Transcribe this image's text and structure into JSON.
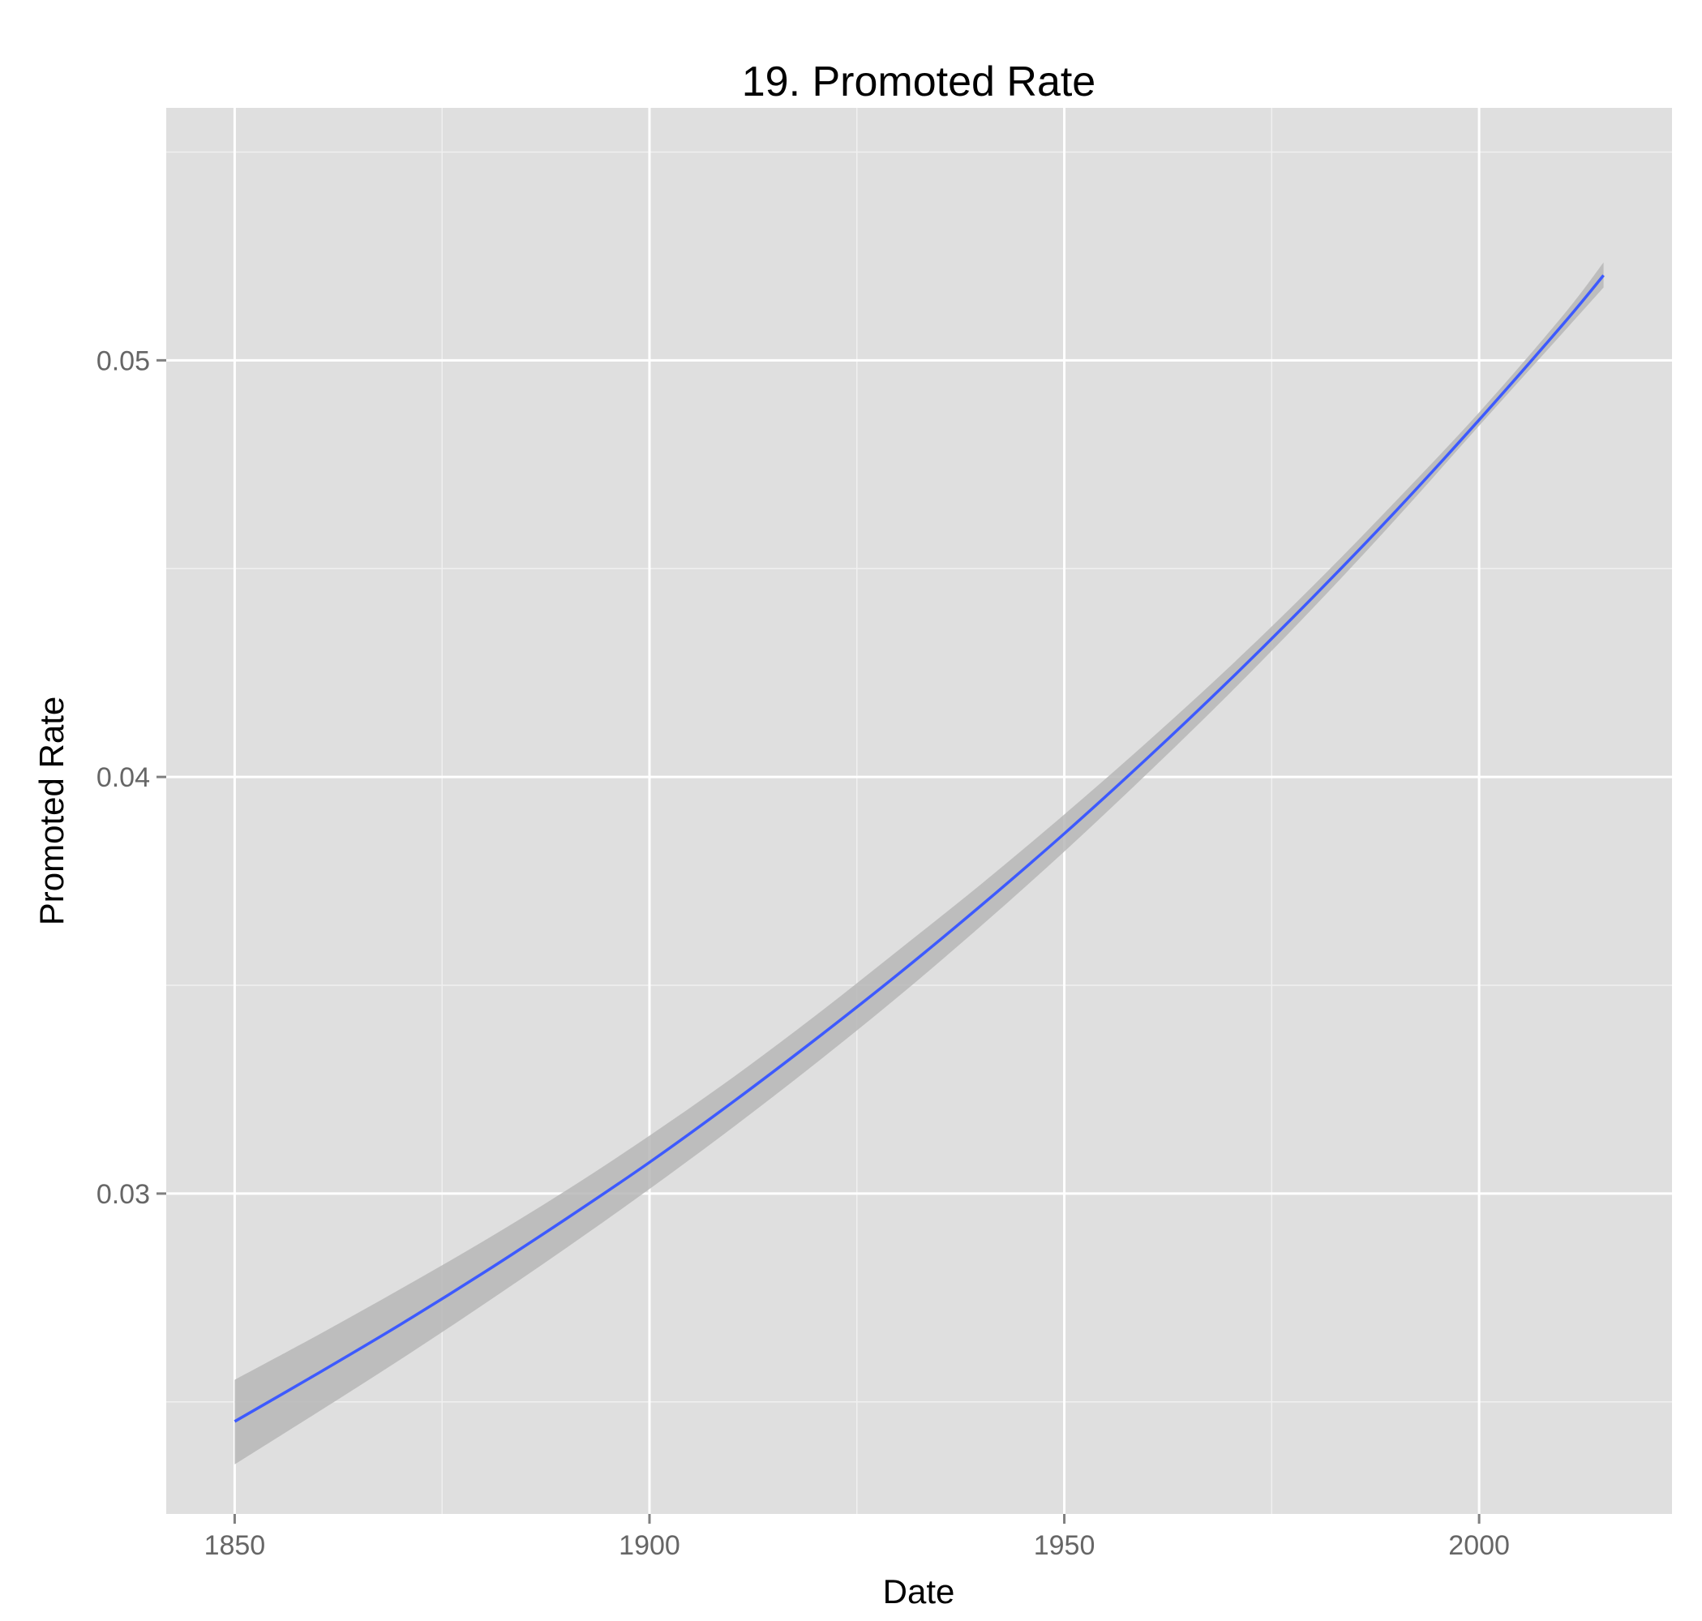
{
  "chart_data": {
    "type": "line",
    "title": "19. Promoted Rate",
    "xlabel": "Date",
    "ylabel": "Promoted Rate",
    "x_ticks": [
      1850,
      1900,
      1950,
      2000
    ],
    "y_ticks": [
      0.03,
      0.04,
      0.05
    ],
    "x_tick_labels": [
      "1850",
      "1900",
      "1950",
      "2000"
    ],
    "y_tick_labels": [
      "0.03",
      "0.04",
      "0.05"
    ],
    "xlim": [
      1841.75,
      2023.25
    ],
    "ylim": [
      0.02231,
      0.05606
    ],
    "grid": true,
    "legend": "none",
    "colors": {
      "panel": "#dfdfdf",
      "grid_major": "#ffffff",
      "grid_minor": "#f0f0f0",
      "line": "#3d5afe",
      "ribbon": "#b7b7b7"
    },
    "series": [
      {
        "x": [
          1850,
          1860,
          1870,
          1880,
          1890,
          1900,
          1910,
          1920,
          1930,
          1940,
          1950,
          1960,
          1970,
          1980,
          1990,
          2000,
          2010,
          2015
        ],
        "values": [
          0.02453,
          0.02568,
          0.02686,
          0.0281,
          0.0294,
          0.03075,
          0.03219,
          0.0337,
          0.03527,
          0.03692,
          0.03864,
          0.04045,
          0.04234,
          0.04432,
          0.04639,
          0.04857,
          0.05084,
          0.05204
        ],
        "lower": [
          0.0235,
          0.02475,
          0.02602,
          0.02734,
          0.0287,
          0.03011,
          0.03158,
          0.03312,
          0.03473,
          0.03643,
          0.03821,
          0.04008,
          0.04202,
          0.04406,
          0.0462,
          0.04843,
          0.05064,
          0.05175
        ],
        "upper": [
          0.02553,
          0.0266,
          0.02771,
          0.02886,
          0.03008,
          0.03139,
          0.03278,
          0.03427,
          0.03584,
          0.03743,
          0.0391,
          0.04084,
          0.04266,
          0.04459,
          0.04663,
          0.04875,
          0.05105,
          0.05235
        ]
      }
    ]
  }
}
